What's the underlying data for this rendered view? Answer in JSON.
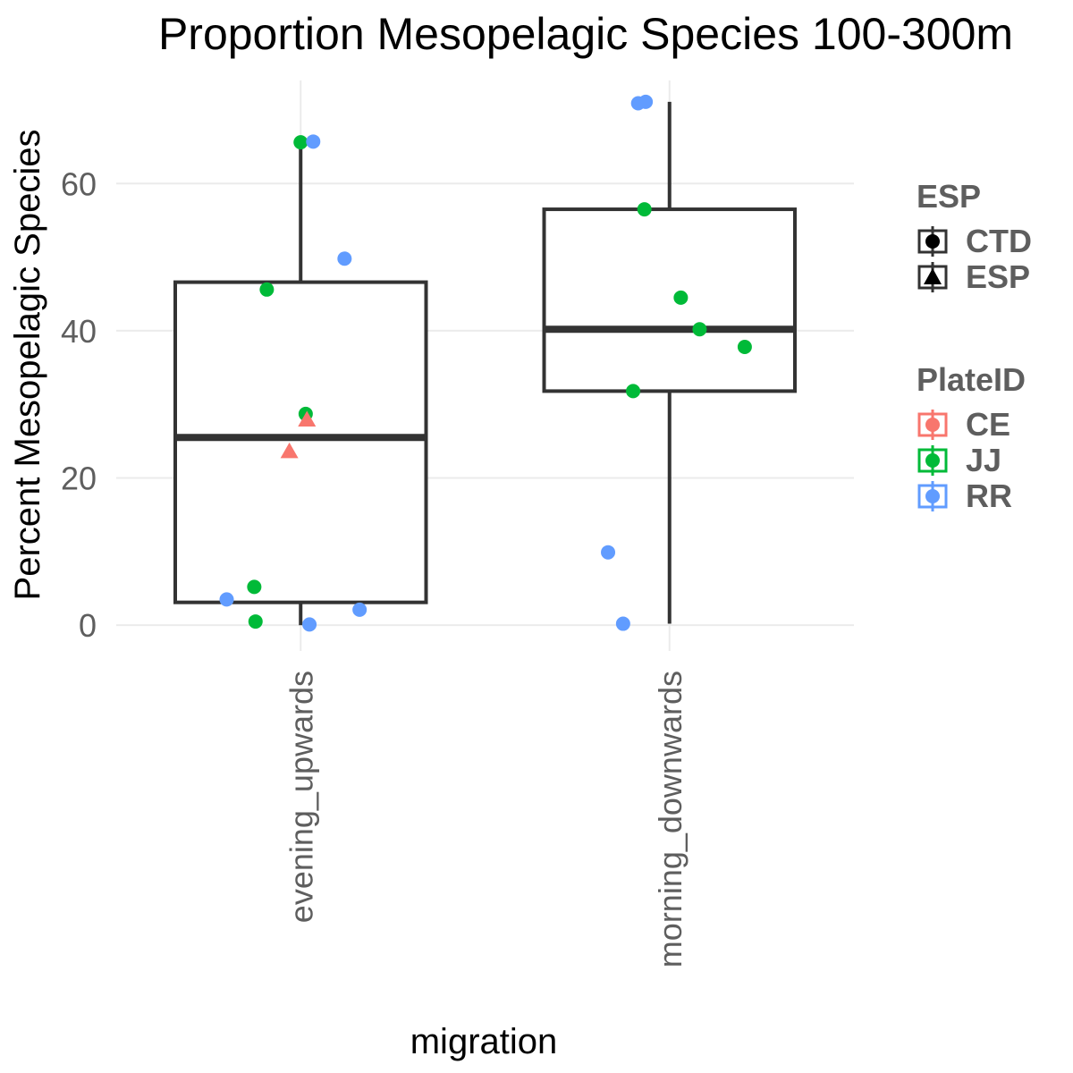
{
  "chart_data": {
    "type": "boxplot",
    "title": "Proportion Mesopelagic Species 100-300m",
    "xlabel": "migration",
    "ylabel": "Percent Mesopelagic Species",
    "categories": [
      "evening_upwards",
      "morning_downwards"
    ],
    "ylim": [
      -3.5,
      74
    ],
    "yticks": [
      0,
      20,
      40,
      60
    ],
    "grid": true,
    "boxes": [
      {
        "category": "evening_upwards",
        "whisker_low": 0,
        "q1": 3.1,
        "median": 25.5,
        "q3": 46.6,
        "whisker_high": 65.6
      },
      {
        "category": "morning_downwards",
        "whisker_low": 0.2,
        "q1": 31.8,
        "median": 40.2,
        "q3": 56.5,
        "whisker_high": 71.1
      }
    ],
    "points": [
      {
        "category": "evening_upwards",
        "y": 65.6,
        "plate": "JJ",
        "esp": "CTD"
      },
      {
        "category": "evening_upwards",
        "y": 65.7,
        "plate": "RR",
        "esp": "CTD"
      },
      {
        "category": "evening_upwards",
        "y": 49.8,
        "plate": "RR",
        "esp": "CTD"
      },
      {
        "category": "evening_upwards",
        "y": 45.6,
        "plate": "JJ",
        "esp": "CTD"
      },
      {
        "category": "evening_upwards",
        "y": 28.7,
        "plate": "JJ",
        "esp": "CTD"
      },
      {
        "category": "evening_upwards",
        "y": 27.9,
        "plate": "CE",
        "esp": "ESP"
      },
      {
        "category": "evening_upwards",
        "y": 23.6,
        "plate": "CE",
        "esp": "ESP"
      },
      {
        "category": "evening_upwards",
        "y": 5.2,
        "plate": "JJ",
        "esp": "CTD"
      },
      {
        "category": "evening_upwards",
        "y": 3.5,
        "plate": "RR",
        "esp": "CTD"
      },
      {
        "category": "evening_upwards",
        "y": 2.1,
        "plate": "RR",
        "esp": "CTD"
      },
      {
        "category": "evening_upwards",
        "y": 0.5,
        "plate": "JJ",
        "esp": "CTD"
      },
      {
        "category": "evening_upwards",
        "y": 0.1,
        "plate": "RR",
        "esp": "CTD"
      },
      {
        "category": "morning_downwards",
        "y": 70.9,
        "plate": "RR",
        "esp": "CTD"
      },
      {
        "category": "morning_downwards",
        "y": 71.1,
        "plate": "RR",
        "esp": "CTD"
      },
      {
        "category": "morning_downwards",
        "y": 56.5,
        "plate": "JJ",
        "esp": "CTD"
      },
      {
        "category": "morning_downwards",
        "y": 44.5,
        "plate": "JJ",
        "esp": "CTD"
      },
      {
        "category": "morning_downwards",
        "y": 40.2,
        "plate": "JJ",
        "esp": "CTD"
      },
      {
        "category": "morning_downwards",
        "y": 37.8,
        "plate": "JJ",
        "esp": "CTD"
      },
      {
        "category": "morning_downwards",
        "y": 31.8,
        "plate": "JJ",
        "esp": "CTD"
      },
      {
        "category": "morning_downwards",
        "y": 9.9,
        "plate": "RR",
        "esp": "CTD"
      },
      {
        "category": "morning_downwards",
        "y": 0.2,
        "plate": "RR",
        "esp": "CTD"
      }
    ],
    "legends": [
      {
        "title": "ESP",
        "entries": [
          {
            "label": "CTD",
            "shape": "circle"
          },
          {
            "label": "ESP",
            "shape": "triangle"
          }
        ]
      },
      {
        "title": "PlateID",
        "entries": [
          {
            "label": "CE",
            "color": "#F8766D"
          },
          {
            "label": "JJ",
            "color": "#00BA38"
          },
          {
            "label": "RR",
            "color": "#619CFF"
          }
        ]
      }
    ],
    "legend_position": "right"
  }
}
